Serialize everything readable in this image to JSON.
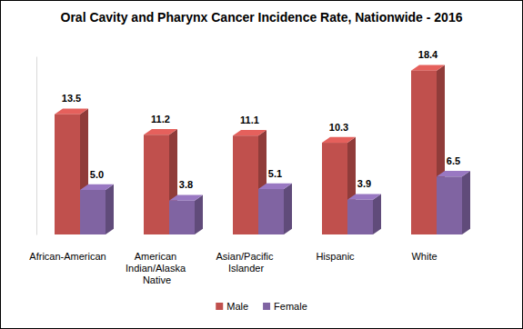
{
  "chart_data": {
    "type": "bar",
    "title": "Oral Cavity and Pharynx Cancer Incidence Rate, Nationwide - 2016",
    "categories": [
      "African-American",
      "American Indian/Alaska Native",
      "Asian/Pacific Islander",
      "Hispanic",
      "White"
    ],
    "series": [
      {
        "name": "Male",
        "color": "#c0504d",
        "values": [
          13.5,
          11.2,
          11.1,
          10.3,
          18.4
        ],
        "value_labels": [
          "13.5",
          "11.2",
          "11.1",
          "10.3",
          "18.4"
        ]
      },
      {
        "name": "Female",
        "color": "#8064a2",
        "values": [
          5.0,
          3.8,
          5.1,
          3.9,
          6.5
        ],
        "value_labels": [
          "5.0",
          "3.8",
          "5.1",
          "3.9",
          "6.5"
        ]
      }
    ],
    "ylim": [
      0,
      20
    ],
    "data_labels": true,
    "legend": "bottom",
    "tick_labels": "x"
  }
}
